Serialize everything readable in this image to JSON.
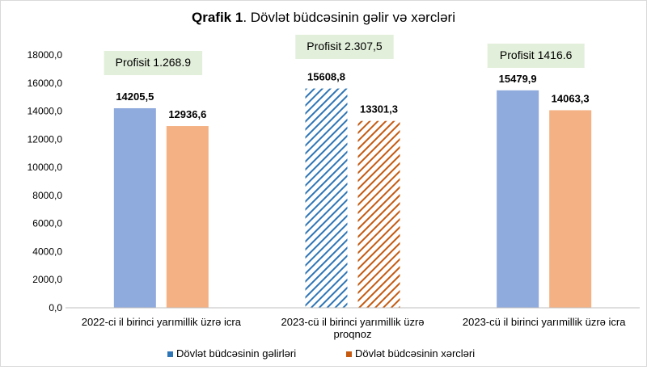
{
  "chart_data": {
    "type": "bar",
    "title_bold": "Qrafik 1",
    "title_rest": ". Dövlət büdcəsinin gəlir və xərcləri",
    "categories": [
      [
        "2022-ci il birinci yarımillik üzrə  icra"
      ],
      [
        "2023-cü il birinci yarımillik üzrə",
        "proqnoz"
      ],
      [
        "2023-cü il birinci yarımillik üzrə icra"
      ]
    ],
    "series": [
      {
        "name": "Dövlət büdcəsinin gəlirləri",
        "values": [
          14205.5,
          15608.8,
          15479.9
        ],
        "labels": [
          "14205,5",
          "15608,8",
          "15479,9"
        ],
        "color": "#8faadc"
      },
      {
        "name": "Dövlət büdcəsinin xərcləri",
        "values": [
          12936.6,
          13301.3,
          14063.3
        ],
        "labels": [
          "12936,6",
          "13301,3",
          "14063,3"
        ],
        "color": "#f4b183"
      }
    ],
    "hatched_category_index": 1,
    "hatch_colors": [
      "#2e75b6",
      "#c55a11"
    ],
    "annotations": [
      "Profisit 1.268.9",
      "Profisit 2.307,5",
      "Profisit 1416.6"
    ],
    "annotation_color": "#e2efda",
    "yticks": [
      "0,0",
      "2000,0",
      "4000,0",
      "6000,0",
      "8000,0",
      "10000,0",
      "12000,0",
      "14000,0",
      "16000,0",
      "18000,0"
    ],
    "ylim": [
      0,
      18000
    ],
    "grid": false,
    "legend_position": "bottom"
  }
}
